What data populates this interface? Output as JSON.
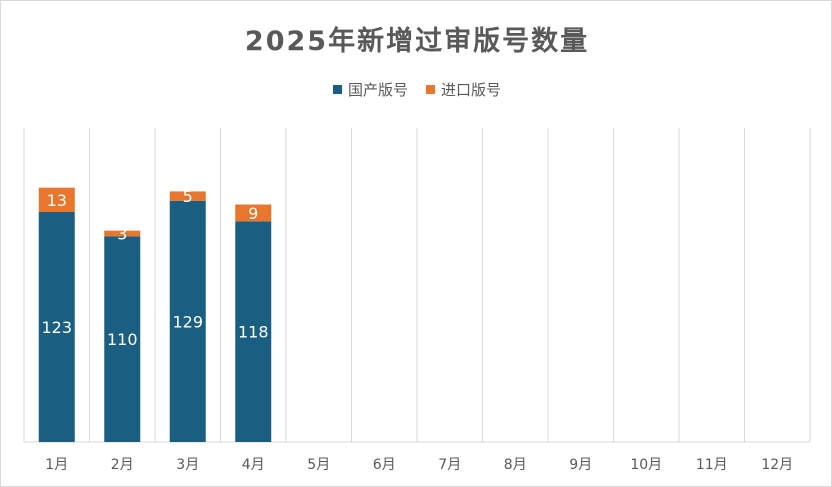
{
  "chart_data": {
    "type": "bar",
    "stacked": true,
    "title": "2025年新增过审版号数量",
    "xlabel": "",
    "ylabel": "",
    "categories": [
      "1月",
      "2月",
      "3月",
      "4月",
      "5月",
      "6月",
      "7月",
      "8月",
      "9月",
      "10月",
      "11月",
      "12月"
    ],
    "series": [
      {
        "name": "国产版号",
        "values": [
          123,
          110,
          129,
          118,
          null,
          null,
          null,
          null,
          null,
          null,
          null,
          null
        ],
        "color": "#1a5e82"
      },
      {
        "name": "进口版号",
        "values": [
          13,
          3,
          5,
          9,
          null,
          null,
          null,
          null,
          null,
          null,
          null,
          null
        ],
        "color": "#e8762d"
      }
    ],
    "ylim": [
      0,
      150
    ],
    "grid": "vertical-category-separators",
    "legend": "top-center"
  }
}
